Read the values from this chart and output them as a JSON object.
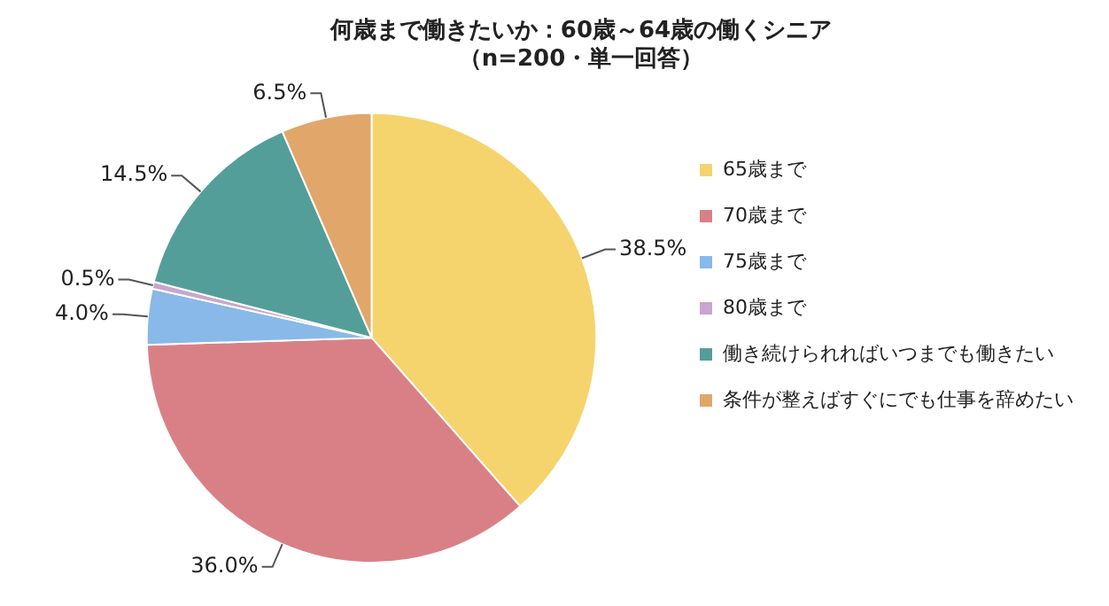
{
  "chart_data": {
    "type": "pie",
    "title": "何歳まで働きたいか：60歳～64歳の働くシニア",
    "subtitle": "（n=200・単一回答）",
    "categories": [
      "65歳まで",
      "70歳まで",
      "75歳まで",
      "80歳まで",
      "働き続けられればいつまでも働きたい",
      "条件が整えばすぐにでも仕事を辞めたい"
    ],
    "values": [
      38.5,
      36.0,
      4.0,
      0.5,
      14.5,
      6.5
    ],
    "value_labels": [
      "38.5%",
      "36.0%",
      "4.0%",
      "0.5%",
      "14.5%",
      "6.5%"
    ],
    "colors": [
      "#f5d46e",
      "#d98087",
      "#88b9e8",
      "#c8a6cf",
      "#549e99",
      "#e1a66a"
    ],
    "legend": "right"
  }
}
